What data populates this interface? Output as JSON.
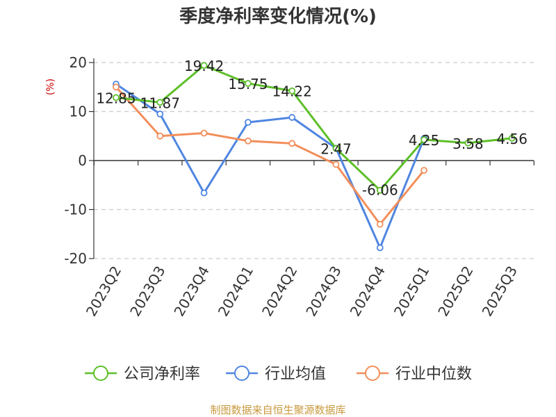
{
  "chart_data": {
    "type": "line",
    "title": "季度净利率变化情况(%)",
    "ylabel": "(%)",
    "ylim": [
      -20,
      20
    ],
    "yticks": [
      20,
      10,
      0,
      -10,
      -20
    ],
    "grid": true,
    "legend_position": "bottom",
    "categories": [
      "2023Q2",
      "2023Q3",
      "2023Q4",
      "2024Q1",
      "2024Q2",
      "2024Q3",
      "2024Q4",
      "2025Q1",
      "2025Q2",
      "2025Q3"
    ],
    "series": [
      {
        "name": "公司净利率",
        "color": "#5dbf29",
        "values": [
          12.85,
          11.87,
          19.42,
          15.75,
          14.22,
          2.47,
          -6.06,
          4.25,
          3.58,
          4.56
        ],
        "labels": [
          "12.85",
          "11.87",
          "19.42",
          "15.75",
          "14.22",
          "2.47",
          "-6.06",
          "4.25",
          "3.58",
          "4.56"
        ]
      },
      {
        "name": "行业均值",
        "color": "#4f86e0",
        "values": [
          15.6,
          9.5,
          -6.6,
          7.8,
          8.8,
          2.5,
          -17.8,
          4.5,
          null,
          null
        ]
      },
      {
        "name": "行业中位数",
        "color": "#f28e5a",
        "values": [
          15.0,
          5.0,
          5.6,
          4.0,
          3.5,
          -0.8,
          -13.0,
          -2.0,
          null,
          null
        ]
      }
    ],
    "source": "制图数据来自恒生聚源数据库"
  },
  "colors": {
    "axis": "#333333",
    "grid": "#cccccc",
    "ylabel": "#cc0000",
    "source": "#c89a3e"
  }
}
